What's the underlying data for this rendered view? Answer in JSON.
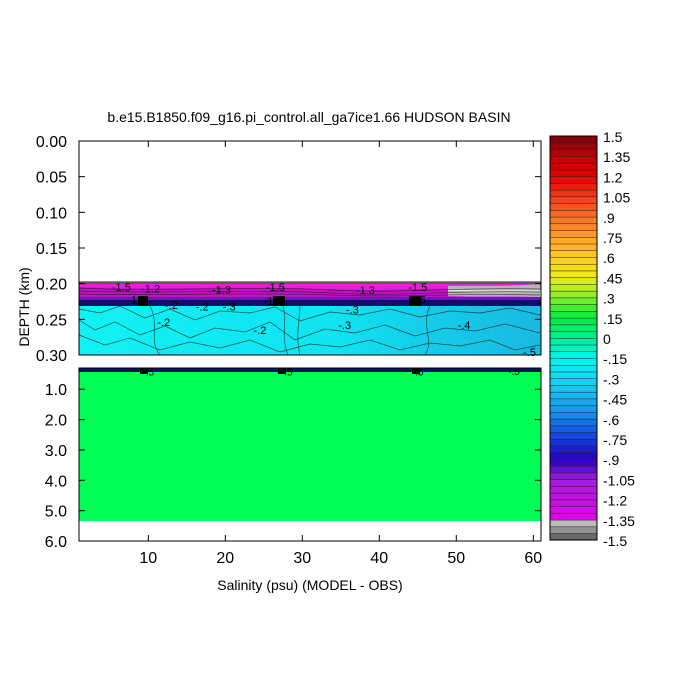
{
  "chart_data": {
    "type": "heatmap",
    "title": "b.e15.B1850.f09_g16.pi_control.all_ga7ice1.66 HUDSON BASIN",
    "xlabel": "Salinity (psu) (MODEL - OBS)",
    "ylabel": "DEPTH (km)",
    "xlim": [
      1,
      61
    ],
    "x_ticks": [
      10,
      20,
      30,
      40,
      50,
      60
    ],
    "upper_panel": {
      "ylim": [
        0.0,
        0.3
      ],
      "y_ticks": [
        "0.00",
        "0.05",
        "0.10",
        "0.15",
        "0.20",
        "0.25",
        "0.30"
      ]
    },
    "lower_panel": {
      "ylim": [
        0.3,
        6.0
      ],
      "y_ticks": [
        "1.0",
        "2.0",
        "3.0",
        "4.0",
        "5.0",
        "6.0"
      ]
    },
    "colorbar": {
      "min": -1.5,
      "max": 1.5,
      "step": 0.05,
      "tick_labels": [
        "1.5",
        "1.35",
        "1.2",
        "1.05",
        ".9",
        ".75",
        ".6",
        ".45",
        ".3",
        ".15",
        "0",
        "-.15",
        "-.3",
        "-.45",
        "-.6",
        "-.75",
        "-.9",
        "-1.05",
        "-1.2",
        "-1.35",
        "-1.5"
      ]
    },
    "contour_labels_upper": [
      {
        "text": "-1.5",
        "x": 6.5,
        "y": 0.205
      },
      {
        "text": "-1.2",
        "x": 10.3,
        "y": 0.207
      },
      {
        "text": "-1.3",
        "x": 19.5,
        "y": 0.208
      },
      {
        "text": "-1.5",
        "x": 26.5,
        "y": 0.205
      },
      {
        "text": "-1.3",
        "x": 38.2,
        "y": 0.209
      },
      {
        "text": "-1.5",
        "x": 45.0,
        "y": 0.205
      },
      {
        "text": "-1.5",
        "x": 8.5,
        "y": 0.222
      },
      {
        "text": "-1.5",
        "x": 26.2,
        "y": 0.224
      },
      {
        "text": "-1.5",
        "x": 44.8,
        "y": 0.222
      },
      {
        "text": "-.2",
        "x": 13.0,
        "y": 0.23
      },
      {
        "text": "-.2",
        "x": 17.0,
        "y": 0.232
      },
      {
        "text": "-.3",
        "x": 20.5,
        "y": 0.232
      },
      {
        "text": "-.2",
        "x": 12.0,
        "y": 0.254
      },
      {
        "text": "-.2",
        "x": 24.5,
        "y": 0.265
      },
      {
        "text": "-.3",
        "x": 36.5,
        "y": 0.236
      },
      {
        "text": "-.3",
        "x": 35.5,
        "y": 0.258
      },
      {
        "text": "-.4",
        "x": 51.0,
        "y": 0.258
      },
      {
        "text": "-.5",
        "x": 59.5,
        "y": 0.296
      }
    ],
    "contour_labels_lower": [
      {
        "text": "-.5",
        "x": 10.0,
        "y": 0.42
      },
      {
        "text": "-.5",
        "x": 28.0,
        "y": 0.42
      },
      {
        "text": "-.5",
        "x": 45.0,
        "y": 0.42
      },
      {
        "text": "-.5",
        "x": 57.5,
        "y": 0.4
      }
    ]
  }
}
